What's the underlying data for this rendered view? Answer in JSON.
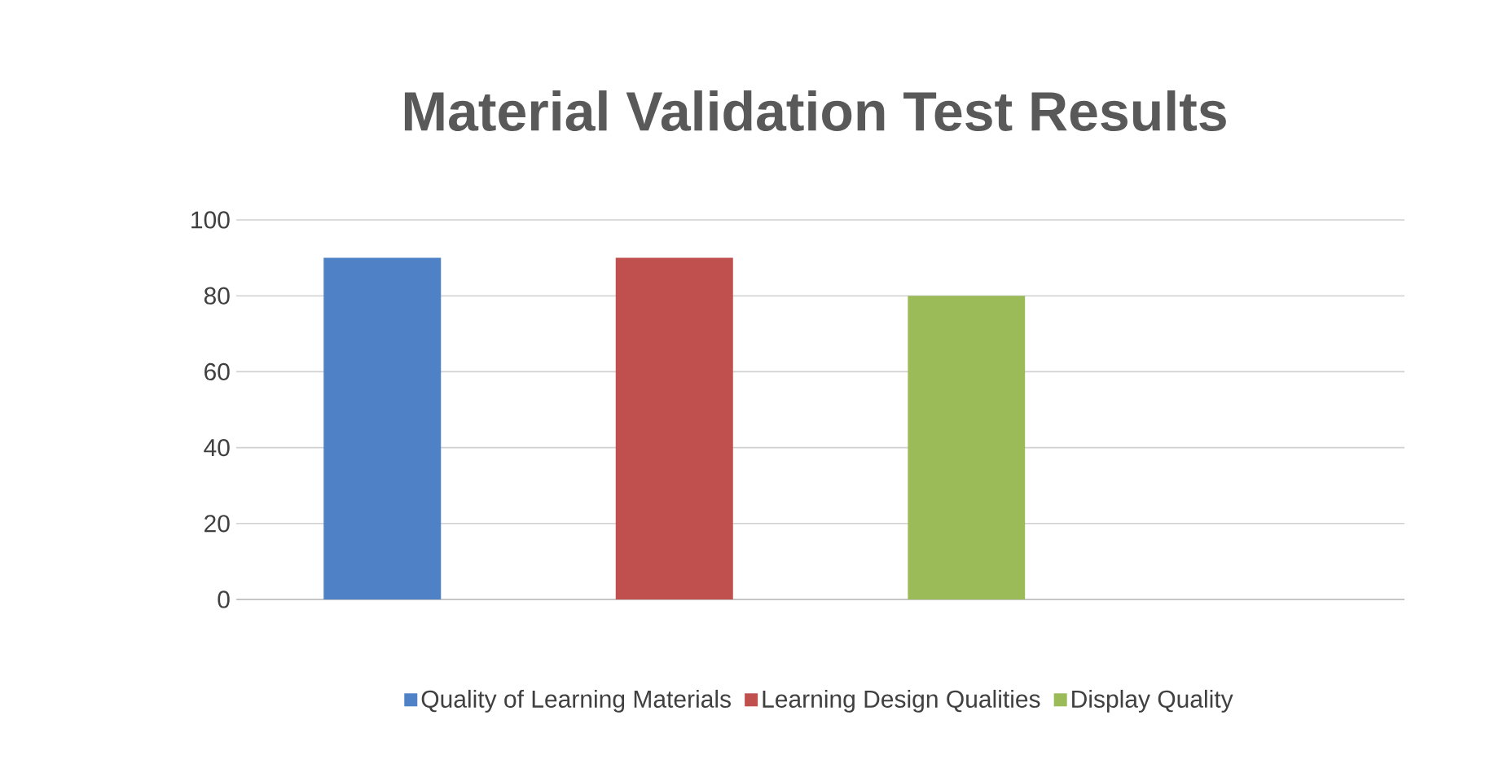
{
  "chart_data": {
    "type": "bar",
    "title": "Material Validation Test Results",
    "categories": [
      null,
      null,
      null,
      null
    ],
    "series": [
      {
        "name": "Quality of Learning Materials",
        "color": "#4f81c7",
        "values": [
          90,
          null,
          null,
          null
        ]
      },
      {
        "name": "Learning Design Qualities",
        "color": "#c0504d",
        "values": [
          null,
          90,
          null,
          null
        ]
      },
      {
        "name": "Display Quality",
        "color": "#9bbb59",
        "values": [
          null,
          null,
          80,
          null
        ]
      }
    ],
    "ylim": [
      0,
      100
    ],
    "yticks": [
      0,
      20,
      40,
      60,
      80,
      100
    ],
    "grid": "y",
    "legend": "bottom",
    "tick_labels": "y"
  }
}
